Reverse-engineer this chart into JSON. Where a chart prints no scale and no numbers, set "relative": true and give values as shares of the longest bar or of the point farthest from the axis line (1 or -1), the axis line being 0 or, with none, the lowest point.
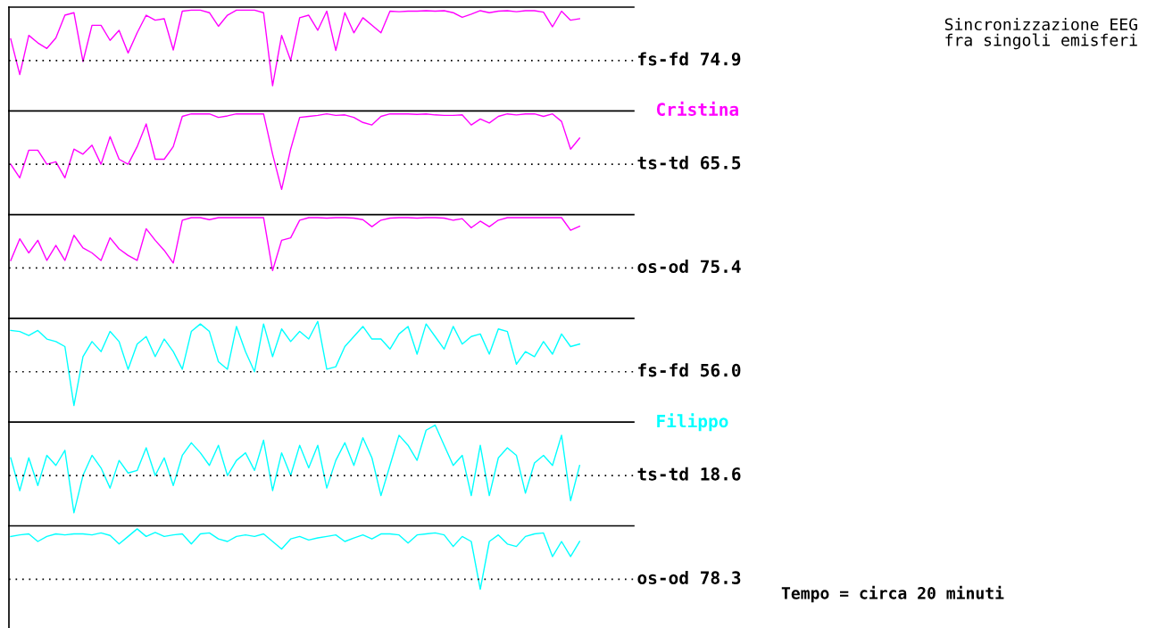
{
  "chart_data": [
    {
      "type": "line",
      "relative": true,
      "ref_lines": [
        {
          "axis": "y",
          "value": 0,
          "color": "#000000",
          "line_style": "dotted"
        }
      ],
      "ylabel": "fs-fd 74.9",
      "line_style": "solid",
      "grid": false,
      "legend": false,
      "categories": [
        null,
        null,
        null,
        null,
        null,
        null,
        null,
        null,
        null,
        null,
        null,
        null,
        null,
        null,
        null,
        null,
        null,
        null,
        null,
        null,
        null,
        null,
        null,
        null,
        null,
        null,
        null,
        null,
        null,
        null,
        null,
        null,
        null,
        null,
        null,
        null,
        null,
        null,
        null,
        null,
        null,
        null,
        null,
        null,
        null,
        null,
        null,
        null,
        null,
        null,
        null,
        null,
        null,
        null,
        null,
        null,
        null,
        null,
        null,
        null,
        null,
        null,
        null,
        null,
        null,
        null,
        null,
        null,
        null,
        null
      ],
      "series": [
        {
          "color": "#ff00ff",
          "values": [
            0.43,
            -0.28,
            0.5,
            0.35,
            0.24,
            0.45,
            0.9,
            0.95,
            -0.02,
            0.7,
            0.7,
            0.4,
            0.6,
            0.15,
            0.55,
            0.9,
            0.8,
            0.83,
            0.21,
            0.98,
            1.0,
            1.0,
            0.95,
            0.68,
            0.9,
            1.0,
            1.0,
            1.0,
            0.95,
            -0.5,
            0.5,
            0.0,
            0.85,
            0.9,
            0.6,
            0.98,
            0.2,
            0.95,
            0.55,
            0.85,
            0.7,
            0.55,
            0.98,
            0.97,
            0.98,
            0.98,
            0.99,
            0.98,
            0.99,
            0.95,
            0.86,
            0.92,
            0.99,
            0.95,
            0.98,
            0.99,
            0.97,
            0.99,
            0.99,
            0.96,
            0.67,
            0.98,
            0.8,
            0.83,
            null,
            null,
            null,
            null,
            null,
            null
          ]
        }
      ]
    },
    {
      "type": "line",
      "relative": true,
      "ref_lines": [
        {
          "axis": "y",
          "value": 0,
          "color": "#000000",
          "line_style": "dotted"
        }
      ],
      "ylabel": "ts-td 65.5",
      "line_style": "solid",
      "grid": false,
      "legend": false,
      "categories": [
        null,
        null,
        null,
        null,
        null,
        null,
        null,
        null,
        null,
        null,
        null,
        null,
        null,
        null,
        null,
        null,
        null,
        null,
        null,
        null,
        null,
        null,
        null,
        null,
        null,
        null,
        null,
        null,
        null,
        null,
        null,
        null,
        null,
        null,
        null,
        null,
        null,
        null,
        null,
        null,
        null,
        null,
        null,
        null,
        null,
        null,
        null,
        null,
        null,
        null,
        null,
        null,
        null,
        null,
        null,
        null,
        null,
        null,
        null,
        null,
        null,
        null,
        null,
        null,
        null,
        null,
        null,
        null,
        null,
        null
      ],
      "series": [
        {
          "name": "Cristina",
          "color": "#ff00ff",
          "values": [
            0.0,
            -0.27,
            0.28,
            0.28,
            0.0,
            0.05,
            -0.27,
            0.3,
            0.2,
            0.38,
            0.0,
            0.55,
            0.1,
            0.0,
            0.35,
            0.8,
            0.1,
            0.1,
            0.35,
            0.95,
            1.0,
            1.0,
            1.0,
            0.93,
            0.96,
            1.0,
            1.0,
            1.0,
            1.0,
            0.2,
            -0.5,
            0.3,
            0.93,
            0.95,
            0.97,
            1.0,
            0.97,
            0.98,
            0.93,
            0.83,
            0.78,
            0.95,
            1.0,
            1.0,
            1.0,
            0.99,
            1.0,
            0.98,
            0.97,
            0.97,
            0.98,
            0.78,
            0.9,
            0.82,
            0.95,
            1.0,
            0.98,
            1.0,
            1.0,
            0.95,
            1.0,
            0.85,
            0.3,
            0.52,
            null,
            null,
            null,
            null,
            null,
            null
          ]
        }
      ]
    },
    {
      "type": "line",
      "relative": true,
      "ref_lines": [
        {
          "axis": "y",
          "value": 0,
          "color": "#000000",
          "line_style": "dotted"
        }
      ],
      "ylabel": "os-od 75.4",
      "line_style": "solid",
      "grid": false,
      "legend": false,
      "categories": [
        null,
        null,
        null,
        null,
        null,
        null,
        null,
        null,
        null,
        null,
        null,
        null,
        null,
        null,
        null,
        null,
        null,
        null,
        null,
        null,
        null,
        null,
        null,
        null,
        null,
        null,
        null,
        null,
        null,
        null,
        null,
        null,
        null,
        null,
        null,
        null,
        null,
        null,
        null,
        null,
        null,
        null,
        null,
        null,
        null,
        null,
        null,
        null,
        null,
        null,
        null,
        null,
        null,
        null,
        null,
        null,
        null,
        null,
        null,
        null,
        null,
        null,
        null,
        null,
        null,
        null,
        null,
        null,
        null,
        null
      ],
      "series": [
        {
          "color": "#ff00ff",
          "values": [
            0.15,
            0.58,
            0.3,
            0.55,
            0.15,
            0.45,
            0.15,
            0.65,
            0.4,
            0.3,
            0.15,
            0.6,
            0.38,
            0.25,
            0.15,
            0.78,
            0.55,
            0.35,
            0.1,
            0.95,
            1.0,
            1.0,
            0.96,
            1.0,
            1.0,
            1.0,
            1.0,
            1.0,
            1.0,
            -0.05,
            0.55,
            0.6,
            0.95,
            1.0,
            1.0,
            0.99,
            1.0,
            1.0,
            0.99,
            0.96,
            0.82,
            0.95,
            0.99,
            1.0,
            1.0,
            0.99,
            1.0,
            1.0,
            0.99,
            0.95,
            0.98,
            0.8,
            0.93,
            0.82,
            0.95,
            1.0,
            1.0,
            1.0,
            1.0,
            1.0,
            1.0,
            1.0,
            0.75,
            0.83,
            null,
            null,
            null,
            null,
            null,
            null
          ]
        }
      ]
    },
    {
      "type": "line",
      "relative": true,
      "ref_lines": [
        {
          "axis": "y",
          "value": 0,
          "color": "#000000",
          "line_style": "dotted"
        }
      ],
      "ylabel": "fs-fd 56.0",
      "line_style": "solid",
      "grid": false,
      "legend": false,
      "categories": [
        null,
        null,
        null,
        null,
        null,
        null,
        null,
        null,
        null,
        null,
        null,
        null,
        null,
        null,
        null,
        null,
        null,
        null,
        null,
        null,
        null,
        null,
        null,
        null,
        null,
        null,
        null,
        null,
        null,
        null,
        null,
        null,
        null,
        null,
        null,
        null,
        null,
        null,
        null,
        null,
        null,
        null,
        null,
        null,
        null,
        null,
        null,
        null,
        null,
        null,
        null,
        null,
        null,
        null,
        null,
        null,
        null,
        null,
        null,
        null,
        null,
        null,
        null,
        null,
        null,
        null,
        null,
        null,
        null,
        null
      ],
      "series": [
        {
          "color": "#00ffff",
          "values": [
            0.82,
            0.8,
            0.72,
            0.82,
            0.65,
            0.6,
            0.5,
            -0.67,
            0.3,
            0.6,
            0.4,
            0.8,
            0.6,
            0.05,
            0.55,
            0.7,
            0.3,
            0.65,
            0.4,
            0.05,
            0.8,
            0.95,
            0.8,
            0.2,
            0.05,
            0.9,
            0.4,
            0.0,
            0.95,
            0.3,
            0.85,
            0.6,
            0.8,
            0.65,
            1.0,
            0.05,
            0.1,
            0.5,
            0.7,
            0.9,
            0.65,
            0.65,
            0.45,
            0.75,
            0.9,
            0.35,
            0.95,
            0.7,
            0.45,
            0.9,
            0.55,
            0.7,
            0.75,
            0.35,
            0.85,
            0.8,
            0.15,
            0.4,
            0.3,
            0.6,
            0.35,
            0.75,
            0.5,
            0.55,
            null,
            null,
            null,
            null,
            null,
            null
          ]
        }
      ]
    },
    {
      "type": "line",
      "relative": true,
      "ref_lines": [
        {
          "axis": "y",
          "value": 0,
          "color": "#000000",
          "line_style": "dotted"
        }
      ],
      "ylabel": "ts-td 18.6",
      "line_style": "solid",
      "grid": false,
      "legend": false,
      "categories": [
        null,
        null,
        null,
        null,
        null,
        null,
        null,
        null,
        null,
        null,
        null,
        null,
        null,
        null,
        null,
        null,
        null,
        null,
        null,
        null,
        null,
        null,
        null,
        null,
        null,
        null,
        null,
        null,
        null,
        null,
        null,
        null,
        null,
        null,
        null,
        null,
        null,
        null,
        null,
        null,
        null,
        null,
        null,
        null,
        null,
        null,
        null,
        null,
        null,
        null,
        null,
        null,
        null,
        null,
        null,
        null,
        null,
        null,
        null,
        null,
        null,
        null,
        null,
        null,
        null,
        null,
        null,
        null,
        null,
        null
      ],
      "series": [
        {
          "name": "Filippo",
          "color": "#00ffff",
          "values": [
            0.35,
            -0.3,
            0.35,
            -0.2,
            0.4,
            0.2,
            0.5,
            -0.74,
            0.0,
            0.4,
            0.15,
            -0.25,
            0.3,
            0.05,
            0.1,
            0.55,
            0.0,
            0.35,
            -0.2,
            0.4,
            0.65,
            0.45,
            0.2,
            0.6,
            0.0,
            0.3,
            0.45,
            0.1,
            0.7,
            -0.3,
            0.45,
            0.0,
            0.6,
            0.15,
            0.6,
            -0.25,
            0.3,
            0.65,
            0.2,
            0.75,
            0.35,
            -0.4,
            0.2,
            0.8,
            0.6,
            0.3,
            0.9,
            1.0,
            0.6,
            0.2,
            0.4,
            -0.4,
            0.6,
            -0.4,
            0.35,
            0.55,
            0.4,
            -0.35,
            0.25,
            0.4,
            0.2,
            0.8,
            -0.5,
            0.2,
            null,
            null,
            null,
            null,
            null,
            null
          ]
        }
      ]
    },
    {
      "type": "line",
      "relative": true,
      "ref_lines": [
        {
          "axis": "y",
          "value": 0,
          "color": "#000000",
          "line_style": "dotted"
        }
      ],
      "ylabel": "os-od 78.3",
      "line_style": "solid",
      "grid": false,
      "legend": false,
      "categories": [
        null,
        null,
        null,
        null,
        null,
        null,
        null,
        null,
        null,
        null,
        null,
        null,
        null,
        null,
        null,
        null,
        null,
        null,
        null,
        null,
        null,
        null,
        null,
        null,
        null,
        null,
        null,
        null,
        null,
        null,
        null,
        null,
        null,
        null,
        null,
        null,
        null,
        null,
        null,
        null,
        null,
        null,
        null,
        null,
        null,
        null,
        null,
        null,
        null,
        null,
        null,
        null,
        null,
        null,
        null,
        null,
        null,
        null,
        null,
        null,
        null,
        null,
        null,
        null,
        null,
        null,
        null,
        null,
        null,
        null
      ],
      "series": [
        {
          "color": "#00ffff",
          "values": [
            0.85,
            0.88,
            0.9,
            0.75,
            0.85,
            0.9,
            0.88,
            0.9,
            0.9,
            0.88,
            0.92,
            0.87,
            0.7,
            0.85,
            1.0,
            0.85,
            0.93,
            0.85,
            0.88,
            0.9,
            0.7,
            0.9,
            0.92,
            0.8,
            0.75,
            0.85,
            0.88,
            0.85,
            0.9,
            0.75,
            0.6,
            0.8,
            0.85,
            0.78,
            0.82,
            0.85,
            0.88,
            0.75,
            0.82,
            0.88,
            0.8,
            0.9,
            0.9,
            0.88,
            0.72,
            0.88,
            0.9,
            0.92,
            0.88,
            0.65,
            0.85,
            0.75,
            -0.2,
            0.75,
            0.88,
            0.7,
            0.65,
            0.85,
            0.9,
            0.92,
            0.45,
            0.75,
            0.45,
            0.75,
            null,
            null,
            null,
            null,
            null,
            null
          ]
        }
      ]
    },
    {
      "type": "other",
      "title": "Sincronizzazione EEG\nfra singoli emisferi",
      "annotations": [
        "Tempo = circa 20 minuti"
      ]
    }
  ]
}
